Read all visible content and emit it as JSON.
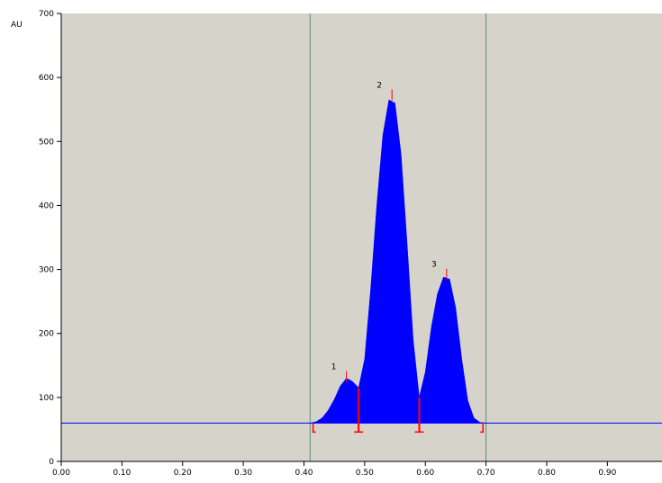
{
  "chart_data": {
    "type": "area",
    "y_label": "AU",
    "x": [
      0.41,
      0.42,
      0.43,
      0.44,
      0.45,
      0.46,
      0.47,
      0.48,
      0.49,
      0.5,
      0.51,
      0.52,
      0.53,
      0.54,
      0.55,
      0.56,
      0.57,
      0.58,
      0.59,
      0.6,
      0.61,
      0.62,
      0.63,
      0.64,
      0.65,
      0.66,
      0.67,
      0.68,
      0.69,
      0.7
    ],
    "values": [
      60,
      62,
      68,
      80,
      97,
      118,
      130,
      125,
      115,
      160,
      270,
      400,
      510,
      565,
      560,
      480,
      340,
      190,
      100,
      140,
      210,
      262,
      288,
      285,
      240,
      160,
      95,
      68,
      61,
      60
    ],
    "color": "#0000ff",
    "baseline": 60,
    "baseline_color": "#0000ff",
    "window": [
      0.41,
      0.7
    ],
    "window_color": "#5a8a8a",
    "peaks": [
      {
        "label": "1",
        "x": 0.47,
        "y": 130
      },
      {
        "label": "2",
        "x": 0.545,
        "y": 570
      },
      {
        "label": "3",
        "x": 0.635,
        "y": 290
      }
    ],
    "boundaries": [
      0.415,
      0.49,
      0.59,
      0.695
    ],
    "marker_color": "#ff0000",
    "xlim": [
      0,
      0.99
    ],
    "ylim": [
      0,
      700
    ],
    "xticks": [
      {
        "value": 0,
        "label": "0.00"
      },
      {
        "value": 0.1,
        "label": "0.10"
      },
      {
        "value": 0.2,
        "label": "0.20"
      },
      {
        "value": 0.3,
        "label": "0.30"
      },
      {
        "value": 0.4,
        "label": "0.40"
      },
      {
        "value": 0.5,
        "label": "0.50"
      },
      {
        "value": 0.6,
        "label": "0.60"
      },
      {
        "value": 0.7,
        "label": "0.70"
      },
      {
        "value": 0.8,
        "label": "0.80"
      },
      {
        "value": 0.9,
        "label": "0.90"
      }
    ],
    "yticks": [
      0,
      100,
      200,
      300,
      400,
      500,
      600,
      700
    ],
    "background": "#d6d3ca"
  }
}
